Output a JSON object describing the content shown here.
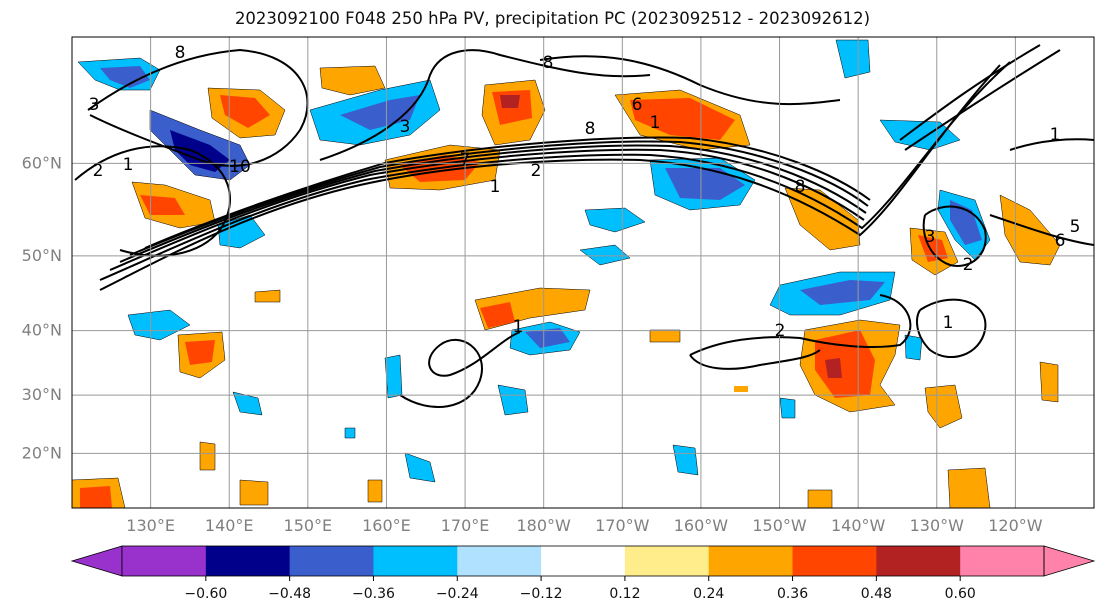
{
  "title": "2023092100 F048 250 hPa PV, precipitation PC (2023092512 - 2023092612)",
  "map": {
    "lat_labels": [
      "20°N",
      "30°N",
      "40°N",
      "50°N",
      "60°N"
    ],
    "lat_values": [
      20,
      30,
      40,
      50,
      60
    ],
    "lon_labels": [
      "130°E",
      "140°E",
      "150°E",
      "160°E",
      "170°E",
      "180°W",
      "170°W",
      "160°W",
      "150°W",
      "140°W",
      "130°W",
      "120°W"
    ],
    "lon_values": [
      130,
      140,
      150,
      160,
      170,
      180,
      190,
      200,
      210,
      220,
      230,
      240
    ],
    "lat_range": [
      10,
      70
    ],
    "lon_range": [
      120,
      250
    ],
    "grid": true,
    "pv_contour_labels": [
      "3",
      "1",
      "2",
      "8",
      "10",
      "3",
      "7",
      "1",
      "2",
      "8",
      "6",
      "8",
      "1",
      "8",
      "3",
      "2",
      "6",
      "5",
      "1",
      "1",
      "2",
      "1"
    ]
  },
  "colorbar": {
    "tick_labels": [
      "−0.60",
      "−0.48",
      "−0.36",
      "−0.24",
      "−0.12",
      "0.12",
      "0.24",
      "0.36",
      "0.48",
      "0.60"
    ],
    "boundaries": [
      -0.6,
      -0.48,
      -0.36,
      -0.24,
      -0.12,
      0.12,
      0.24,
      0.36,
      0.48,
      0.6
    ],
    "colors": [
      "#9932cc",
      "#00008b",
      "#3a5fcd",
      "#00bfff",
      "#b0e2ff",
      "#ffffff",
      "#ffec8b",
      "#ffa500",
      "#ff4500",
      "#b22222",
      "#ff82ab"
    ]
  }
}
